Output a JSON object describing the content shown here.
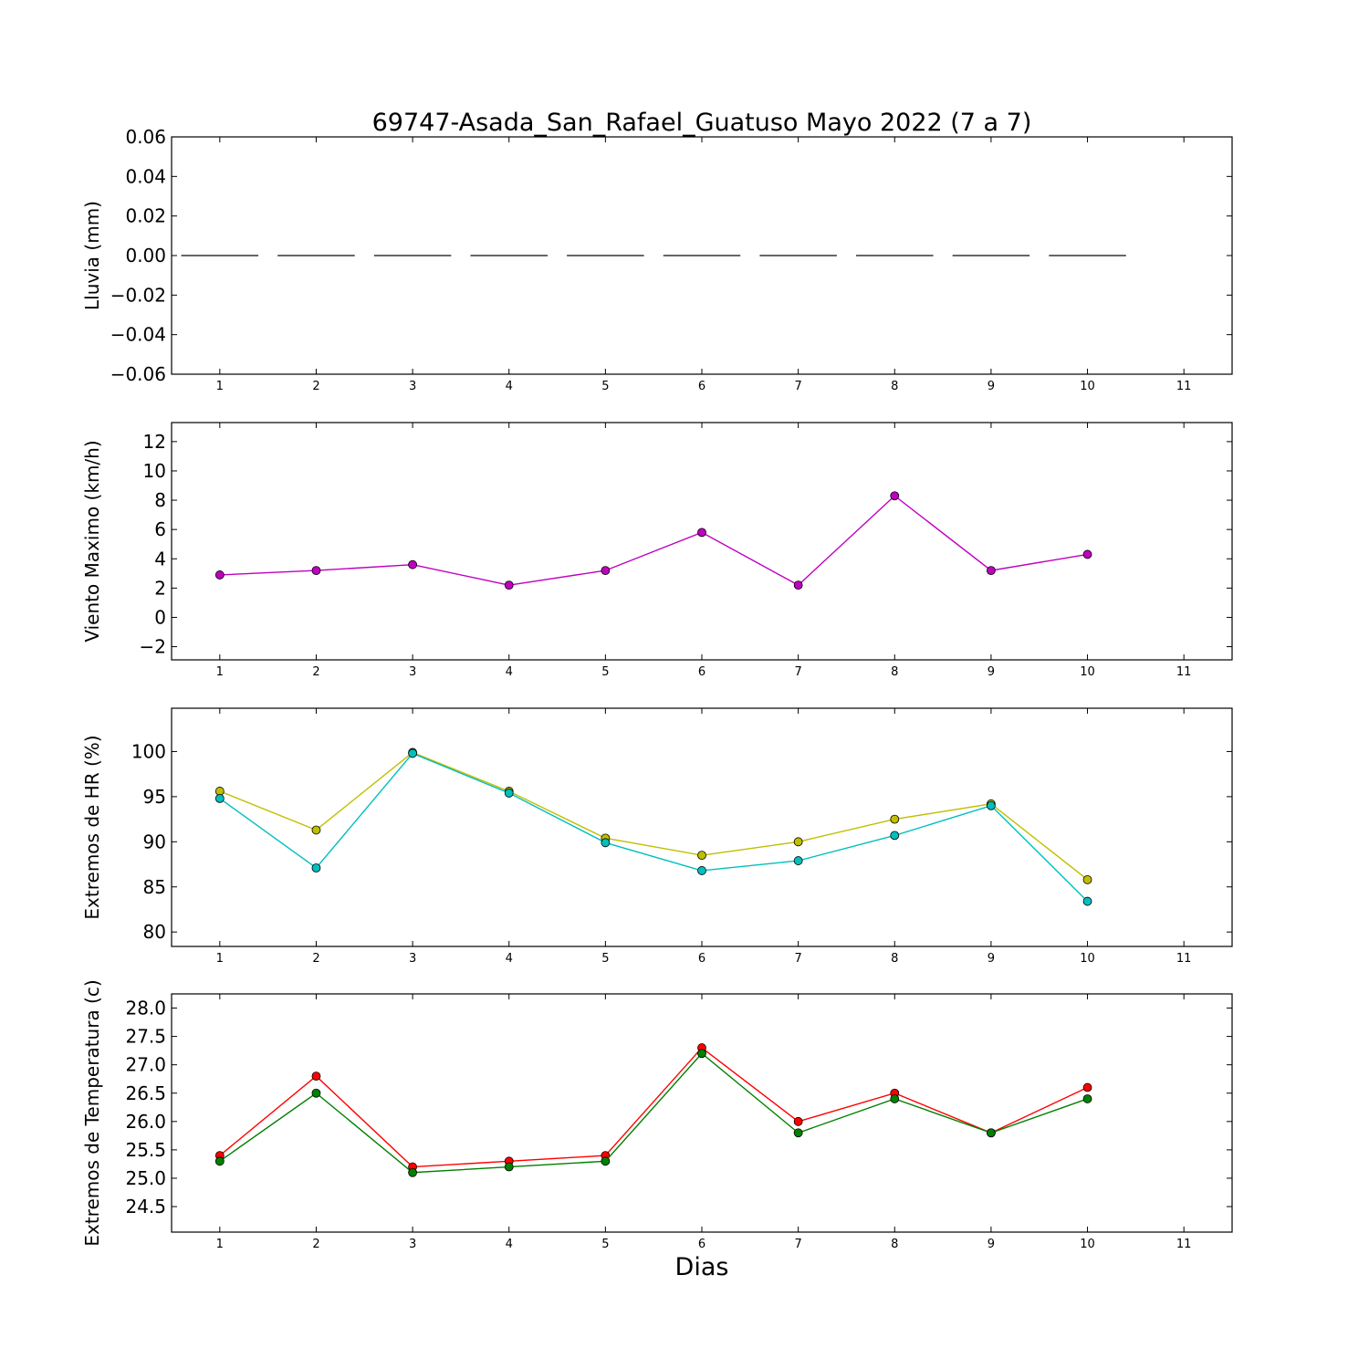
{
  "chart_data": [
    {
      "type": "bar",
      "title": "69747-Asada_San_Rafael_Guatuso Mayo 2022  (7 a 7)",
      "ylabel": "Lluvia (mm)",
      "xlabel": "",
      "xlim": [
        0.5,
        11.5
      ],
      "xticks": [
        1,
        2,
        3,
        4,
        5,
        6,
        7,
        8,
        9,
        10,
        11
      ],
      "ylim": [
        -0.06,
        0.06
      ],
      "yticks": [
        0.06,
        0.04,
        0.02,
        0.0,
        -0.02,
        -0.04,
        -0.06
      ],
      "ytick_labels": [
        "0.06",
        "0.04",
        "0.02",
        "0.00",
        "−0.02",
        "−0.04",
        "−0.06"
      ],
      "series": [
        {
          "color": "#000000",
          "x": [
            1,
            2,
            3,
            4,
            5,
            6,
            7,
            8,
            9,
            10
          ],
          "values": [
            0,
            0,
            0,
            0,
            0,
            0,
            0,
            0,
            0,
            0
          ]
        }
      ]
    },
    {
      "type": "line",
      "ylabel": "Viento Maximo (km/h)",
      "xlim": [
        0.5,
        11.5
      ],
      "xticks": [
        1,
        2,
        3,
        4,
        5,
        6,
        7,
        8,
        9,
        10,
        11
      ],
      "ylim": [
        -2.9,
        13.3
      ],
      "yticks": [
        12,
        10,
        8,
        6,
        4,
        2,
        0,
        -2
      ],
      "ytick_labels": [
        "12",
        "10",
        "8",
        "6",
        "4",
        "2",
        "0",
        "−2"
      ],
      "series": [
        {
          "color": "#bf00bf",
          "x": [
            1,
            2,
            3,
            4,
            5,
            6,
            7,
            8,
            9,
            10
          ],
          "values": [
            2.9,
            3.2,
            3.6,
            2.2,
            3.2,
            5.8,
            2.2,
            8.3,
            3.2,
            4.3
          ]
        }
      ]
    },
    {
      "type": "line",
      "ylabel": "Extremos de HR (%)",
      "xlim": [
        0.5,
        11.5
      ],
      "xticks": [
        1,
        2,
        3,
        4,
        5,
        6,
        7,
        8,
        9,
        10,
        11
      ],
      "ylim": [
        78.4,
        104.8
      ],
      "yticks": [
        100,
        95,
        90,
        85,
        80
      ],
      "ytick_labels": [
        "100",
        "95",
        "90",
        "85",
        "80"
      ],
      "series": [
        {
          "color": "#bfbf00",
          "x": [
            1,
            2,
            3,
            4,
            5,
            6,
            7,
            8,
            9,
            10
          ],
          "values": [
            95.6,
            91.3,
            99.9,
            95.6,
            90.4,
            88.5,
            90.0,
            92.5,
            94.2,
            85.8
          ]
        },
        {
          "color": "#00bfbf",
          "x": [
            1,
            2,
            3,
            4,
            5,
            6,
            7,
            8,
            9,
            10
          ],
          "values": [
            94.8,
            87.1,
            99.8,
            95.4,
            89.9,
            86.8,
            87.9,
            90.7,
            94.0,
            83.4
          ]
        }
      ]
    },
    {
      "type": "line",
      "ylabel": "Extremos de Temperatura (c)",
      "xlabel": "Dias",
      "xlim": [
        0.5,
        11.5
      ],
      "xticks": [
        1,
        2,
        3,
        4,
        5,
        6,
        7,
        8,
        9,
        10,
        11
      ],
      "ylim": [
        24.05,
        28.25
      ],
      "yticks": [
        28.0,
        27.5,
        27.0,
        26.5,
        26.0,
        25.5,
        25.0,
        24.5
      ],
      "ytick_labels": [
        "28.0",
        "27.5",
        "27.0",
        "26.5",
        "26.0",
        "25.5",
        "25.0",
        "24.5"
      ],
      "series": [
        {
          "color": "#ff0000",
          "x": [
            1,
            2,
            3,
            4,
            5,
            6,
            7,
            8,
            9,
            10
          ],
          "values": [
            25.4,
            26.8,
            25.2,
            25.3,
            25.4,
            27.3,
            26.0,
            26.5,
            25.8,
            26.6
          ]
        },
        {
          "color": "#008000",
          "x": [
            1,
            2,
            3,
            4,
            5,
            6,
            7,
            8,
            9,
            10
          ],
          "values": [
            25.3,
            26.5,
            25.1,
            25.2,
            25.3,
            27.2,
            25.8,
            26.4,
            25.8,
            26.4
          ]
        }
      ]
    }
  ]
}
